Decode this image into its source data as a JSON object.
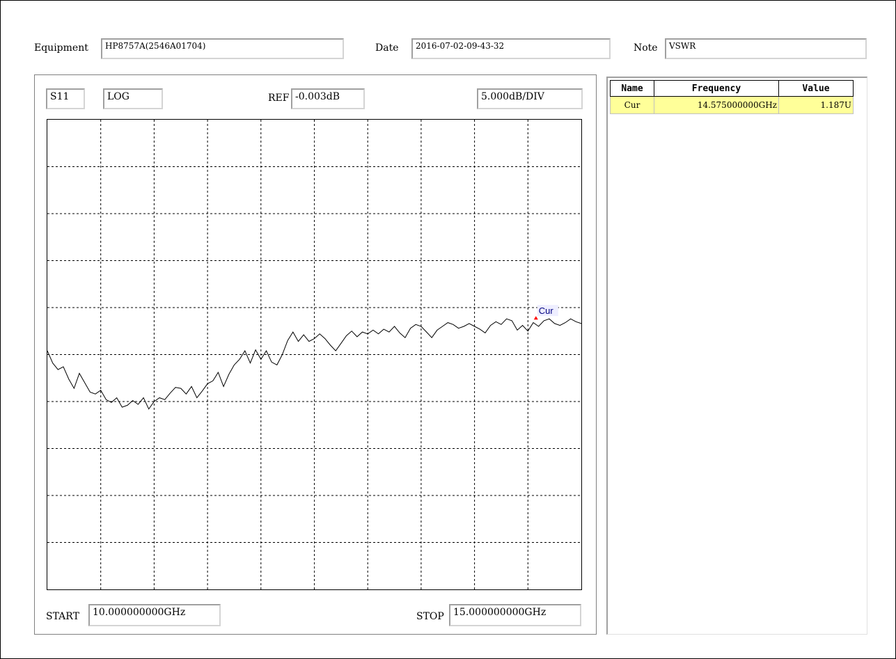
{
  "header": {
    "equipment_label": "Equipment",
    "equipment_value": "HP8757A(2546A01704)",
    "date_label": "Date",
    "date_value": "2016-07-02-09-43-32",
    "note_label": "Note",
    "note_value": "VSWR"
  },
  "chart_header": {
    "param": "S11",
    "format": "LOG",
    "ref_label": "REF",
    "ref_value": "-0.003dB",
    "scale_value": "5.000dB/DIV"
  },
  "chart_footer": {
    "start_label": "START",
    "start_value": "10.000000000GHz",
    "stop_label": "STOP",
    "stop_value": "15.000000000GHz"
  },
  "marker_table": {
    "columns": [
      "Name",
      "Frequency",
      "Value"
    ],
    "rows": [
      {
        "name": "Cur",
        "frequency": "14.575000000GHz",
        "value": "1.187U"
      }
    ]
  },
  "colors": {
    "trace": "#000000",
    "marker": "#ff0000",
    "marker_label": "#000080",
    "grid": "#000000",
    "table_highlight": "#ffff99"
  },
  "chart_data": {
    "type": "line",
    "x_unit": "GHz",
    "y_unit": "dB",
    "xlim": [
      10.0,
      15.0
    ],
    "ylim": [
      -50,
      0
    ],
    "ref_db": -0.003,
    "db_per_div": 5.0,
    "grid": true,
    "x": [
      10.0,
      10.05,
      10.1,
      10.15,
      10.2,
      10.25,
      10.3,
      10.35,
      10.4,
      10.45,
      10.5,
      10.55,
      10.6,
      10.65,
      10.7,
      10.75,
      10.8,
      10.85,
      10.9,
      10.95,
      11.0,
      11.05,
      11.1,
      11.15,
      11.2,
      11.25,
      11.3,
      11.35,
      11.4,
      11.45,
      11.5,
      11.55,
      11.6,
      11.65,
      11.7,
      11.75,
      11.8,
      11.85,
      11.9,
      11.95,
      12.0,
      12.05,
      12.1,
      12.15,
      12.2,
      12.25,
      12.3,
      12.35,
      12.4,
      12.45,
      12.5,
      12.55,
      12.6,
      12.65,
      12.7,
      12.75,
      12.8,
      12.85,
      12.9,
      12.95,
      13.0,
      13.05,
      13.1,
      13.15,
      13.2,
      13.25,
      13.3,
      13.35,
      13.4,
      13.45,
      13.5,
      13.55,
      13.6,
      13.65,
      13.7,
      13.75,
      13.8,
      13.85,
      13.9,
      13.95,
      14.0,
      14.05,
      14.1,
      14.15,
      14.2,
      14.25,
      14.3,
      14.35,
      14.4,
      14.45,
      14.5,
      14.55,
      14.6,
      14.65,
      14.7,
      14.75,
      14.8,
      14.85,
      14.9,
      14.95,
      15.0
    ],
    "y": [
      -24.6,
      -25.9,
      -26.6,
      -26.3,
      -27.6,
      -28.6,
      -27.0,
      -28.0,
      -29.0,
      -29.2,
      -28.8,
      -29.8,
      -30.1,
      -29.6,
      -30.6,
      -30.4,
      -29.9,
      -30.3,
      -29.6,
      -30.8,
      -30.0,
      -29.6,
      -29.8,
      -29.1,
      -28.5,
      -28.6,
      -29.2,
      -28.4,
      -29.6,
      -28.9,
      -28.1,
      -27.8,
      -26.9,
      -28.4,
      -27.1,
      -26.1,
      -25.5,
      -24.6,
      -25.9,
      -24.5,
      -25.5,
      -24.6,
      -25.8,
      -26.1,
      -25.0,
      -23.5,
      -22.6,
      -23.6,
      -22.9,
      -23.6,
      -23.3,
      -22.8,
      -23.3,
      -24.0,
      -24.6,
      -23.8,
      -23.0,
      -22.5,
      -23.1,
      -22.6,
      -22.8,
      -22.4,
      -22.8,
      -22.3,
      -22.6,
      -22.0,
      -22.7,
      -23.2,
      -22.2,
      -21.8,
      -22.0,
      -22.6,
      -23.2,
      -22.4,
      -22.0,
      -21.6,
      -21.8,
      -22.2,
      -22.0,
      -21.7,
      -22.0,
      -22.3,
      -22.7,
      -21.9,
      -21.5,
      -21.8,
      -21.2,
      -21.4,
      -22.4,
      -21.9,
      -22.5,
      -21.6,
      -22.0,
      -21.4,
      -21.2,
      -21.7,
      -21.9,
      -21.6,
      -21.2,
      -21.5,
      -21.7
    ],
    "markers": [
      {
        "name": "Cur",
        "x": 14.575,
        "y": -21.2
      }
    ]
  }
}
